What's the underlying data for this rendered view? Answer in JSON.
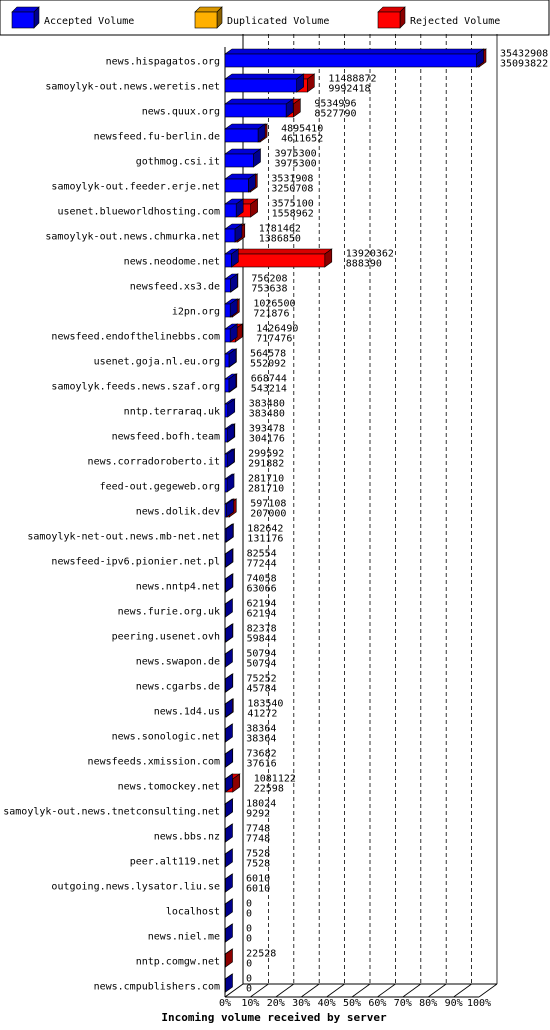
{
  "chart_data": {
    "type": "bar",
    "orientation": "horizontal",
    "stacked": false,
    "xlabel": "Incoming volume received by server",
    "x_ticks": [
      "0%",
      "10%",
      "20%",
      "30%",
      "40%",
      "50%",
      "60%",
      "70%",
      "80%",
      "90%",
      "100%"
    ],
    "xlim": [
      0,
      35432908
    ],
    "grid": true,
    "legend_position": "top",
    "legend": [
      {
        "name": "Accepted Volume",
        "color": "#0000ff"
      },
      {
        "name": "Duplicated Volume",
        "color": "#ffb000"
      },
      {
        "name": "Rejected Volume",
        "color": "#ff0000"
      }
    ],
    "rows": [
      {
        "server": "news.hispagatos.org",
        "total": 35432908,
        "accepted": 35093822
      },
      {
        "server": "samoylyk-out.news.weretis.net",
        "total": 11488872,
        "accepted": 9992418
      },
      {
        "server": "news.quux.org",
        "total": 9534996,
        "accepted": 8527790
      },
      {
        "server": "newsfeed.fu-berlin.de",
        "total": 4895410,
        "accepted": 4611652
      },
      {
        "server": "gothmog.csi.it",
        "total": 3975300,
        "accepted": 3975300
      },
      {
        "server": "samoylyk-out.feeder.erje.net",
        "total": 3531908,
        "accepted": 3250708
      },
      {
        "server": "usenet.blueworldhosting.com",
        "total": 3575100,
        "accepted": 1558962
      },
      {
        "server": "samoylyk-out.news.chmurka.net",
        "total": 1781462,
        "accepted": 1386850
      },
      {
        "server": "news.neodome.net",
        "total": 13920362,
        "accepted": 888390
      },
      {
        "server": "newsfeed.xs3.de",
        "total": 756208,
        "accepted": 753638
      },
      {
        "server": "i2pn.org",
        "total": 1026500,
        "accepted": 721876
      },
      {
        "server": "newsfeed.endofthelinebbs.com",
        "total": 1426490,
        "accepted": 717476
      },
      {
        "server": "usenet.goja.nl.eu.org",
        "total": 564578,
        "accepted": 552092
      },
      {
        "server": "samoylyk.feeds.news.szaf.org",
        "total": 668744,
        "accepted": 543214
      },
      {
        "server": "nntp.terraraq.uk",
        "total": 383480,
        "accepted": 383480
      },
      {
        "server": "newsfeed.bofh.team",
        "total": 393478,
        "accepted": 304176
      },
      {
        "server": "news.corradoroberto.it",
        "total": 299592,
        "accepted": 291882
      },
      {
        "server": "feed-out.gegeweb.org",
        "total": 281710,
        "accepted": 281710
      },
      {
        "server": "news.dolik.dev",
        "total": 597108,
        "accepted": 207000
      },
      {
        "server": "samoylyk-net-out.news.mb-net.net",
        "total": 182642,
        "accepted": 131176
      },
      {
        "server": "newsfeed-ipv6.pionier.net.pl",
        "total": 82554,
        "accepted": 77244
      },
      {
        "server": "news.nntp4.net",
        "total": 74058,
        "accepted": 63066
      },
      {
        "server": "news.furie.org.uk",
        "total": 62194,
        "accepted": 62194
      },
      {
        "server": "peering.usenet.ovh",
        "total": 82378,
        "accepted": 59844
      },
      {
        "server": "news.swapon.de",
        "total": 50794,
        "accepted": 50794
      },
      {
        "server": "news.cgarbs.de",
        "total": 75252,
        "accepted": 45784
      },
      {
        "server": "news.1d4.us",
        "total": 183540,
        "accepted": 41272
      },
      {
        "server": "news.sonologic.net",
        "total": 38364,
        "accepted": 38364
      },
      {
        "server": "newsfeeds.xmission.com",
        "total": 73682,
        "accepted": 37616
      },
      {
        "server": "news.tomockey.net",
        "total": 1081122,
        "accepted": 22598
      },
      {
        "server": "samoylyk-out.news.tnetconsulting.net",
        "total": 18024,
        "accepted": 9292
      },
      {
        "server": "news.bbs.nz",
        "total": 7748,
        "accepted": 7748
      },
      {
        "server": "peer.alt119.net",
        "total": 7528,
        "accepted": 7528
      },
      {
        "server": "outgoing.news.lysator.liu.se",
        "total": 6010,
        "accepted": 6010
      },
      {
        "server": "localhost",
        "total": 0,
        "accepted": 0
      },
      {
        "server": "news.niel.me",
        "total": 0,
        "accepted": 0
      },
      {
        "server": "nntp.comgw.net",
        "total": 22528,
        "accepted": 0
      },
      {
        "server": "news.cmpublishers.com",
        "total": 0,
        "accepted": 0
      }
    ]
  }
}
